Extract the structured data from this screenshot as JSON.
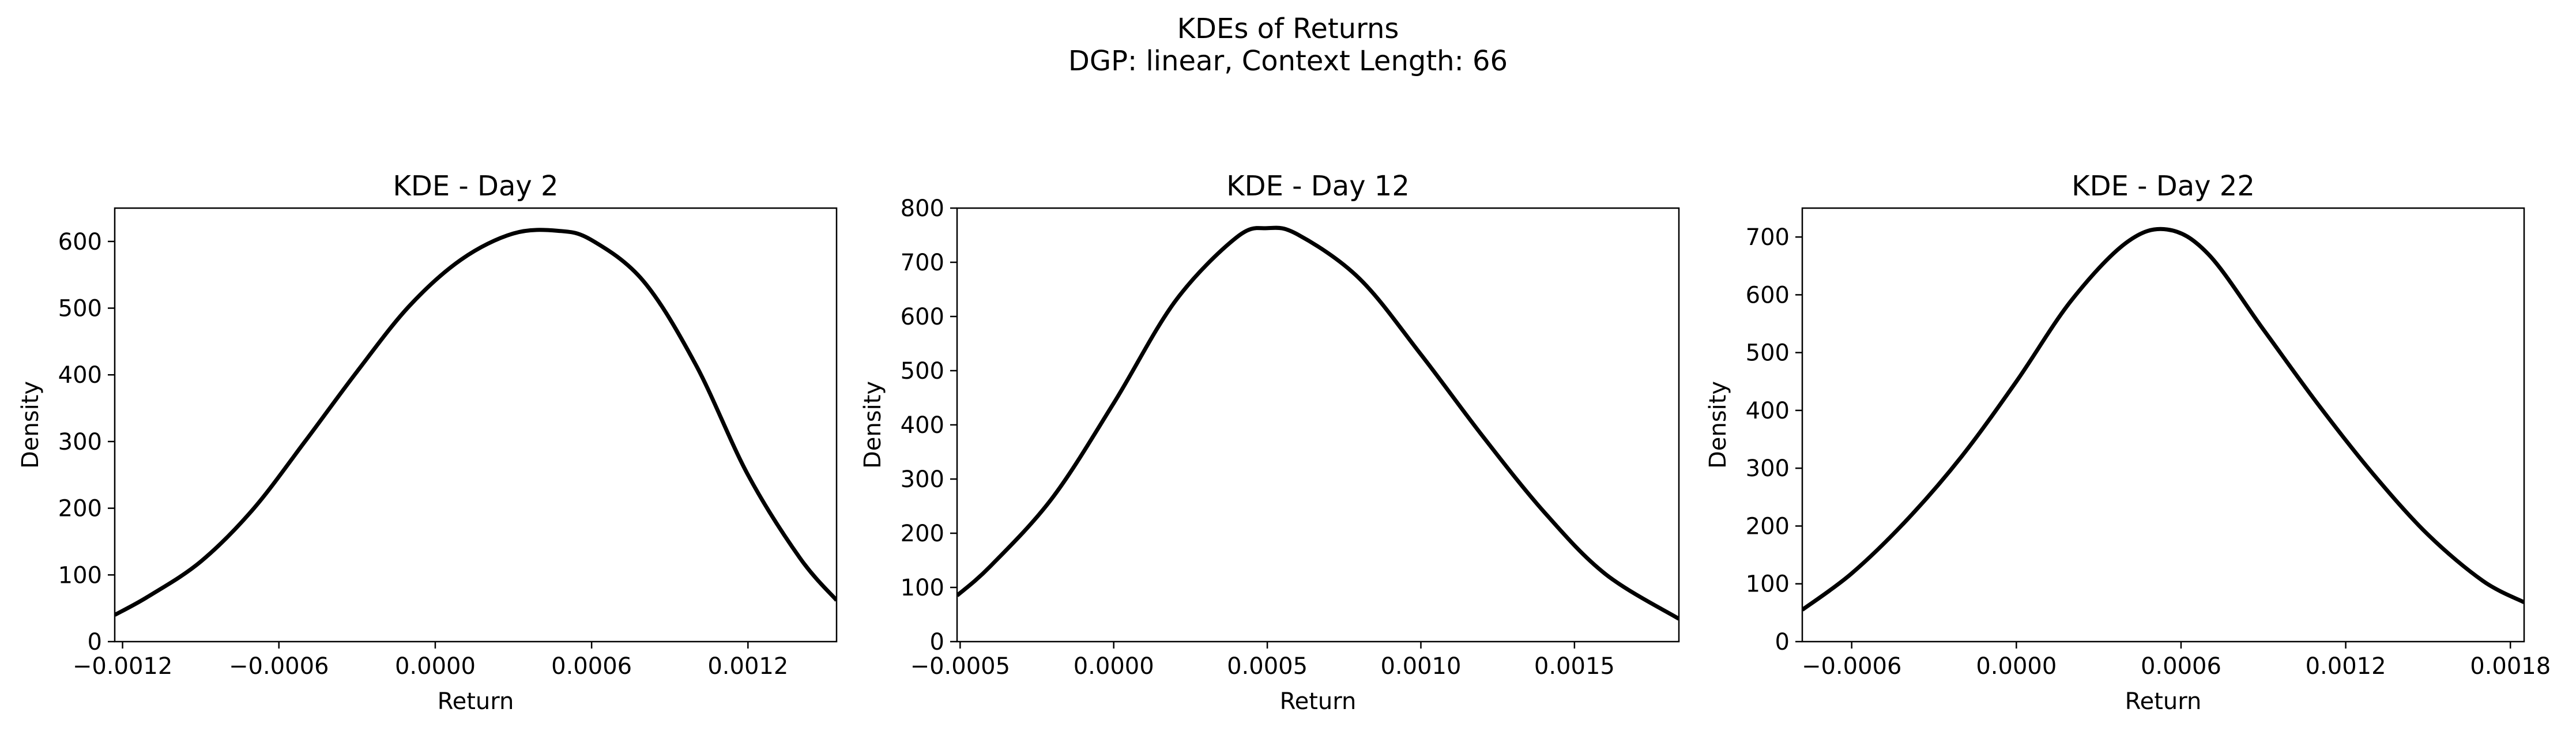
{
  "figure": {
    "title_line1": "KDEs of Returns",
    "title_line2": "DGP: linear, Context Length: 66"
  },
  "style": {
    "line_color": "#000000"
  },
  "chart_data": [
    {
      "type": "line",
      "title": "KDE - Day 2",
      "xlabel": "Return",
      "ylabel": "Density",
      "xlim": [
        -0.00123,
        0.00154
      ],
      "ylim": [
        0,
        650
      ],
      "xticks": [
        -0.0012,
        -0.0006,
        0.0,
        0.0006,
        0.0012
      ],
      "xtick_labels": [
        "−0.0012",
        "−0.0006",
        "0.0000",
        "0.0006",
        "0.0012"
      ],
      "yticks": [
        0,
        100,
        200,
        300,
        400,
        500,
        600
      ],
      "ytick_labels": [
        "0",
        "100",
        "200",
        "300",
        "400",
        "500",
        "600"
      ],
      "series": [
        {
          "x": [
            -0.00123,
            -0.0011,
            -0.0009,
            -0.0007,
            -0.0005,
            -0.0003,
            -0.0001,
            0.0001,
            0.0003,
            0.00047,
            0.0006,
            0.0008,
            0.001,
            0.0012,
            0.0014,
            0.00154
          ],
          "y": [
            40,
            68,
            120,
            198,
            300,
            405,
            503,
            573,
            612,
            616,
            602,
            540,
            415,
            250,
            125,
            62
          ]
        }
      ]
    },
    {
      "type": "line",
      "title": "KDE - Day 12",
      "xlabel": "Return",
      "ylabel": "Density",
      "xlim": [
        -0.00051,
        0.00184
      ],
      "ylim": [
        0,
        800
      ],
      "xticks": [
        -0.0005,
        0.0,
        0.0005,
        0.001,
        0.0015
      ],
      "xtick_labels": [
        "−0.0005",
        "0.0000",
        "0.0005",
        "0.0010",
        "0.0015"
      ],
      "yticks": [
        0,
        100,
        200,
        300,
        400,
        500,
        600,
        700,
        800
      ],
      "ytick_labels": [
        "0",
        "100",
        "200",
        "300",
        "400",
        "500",
        "600",
        "700",
        "800"
      ],
      "series": [
        {
          "x": [
            -0.00051,
            -0.0004,
            -0.0002,
            0.0,
            0.0002,
            0.0004,
            0.0005,
            0.0006,
            0.0008,
            0.001,
            0.0012,
            0.0014,
            0.0016,
            0.00184
          ],
          "y": [
            85,
            140,
            265,
            440,
            628,
            746,
            763,
            751,
            670,
            530,
            380,
            240,
            125,
            42
          ]
        }
      ]
    },
    {
      "type": "line",
      "title": "KDE - Day 22",
      "xlabel": "Return",
      "ylabel": "Density",
      "xlim": [
        -0.00078,
        0.00185
      ],
      "ylim": [
        0,
        750
      ],
      "xticks": [
        -0.0006,
        0.0,
        0.0006,
        0.0012,
        0.0018
      ],
      "xtick_labels": [
        "−0.0006",
        "0.0000",
        "0.0006",
        "0.0012",
        "0.0018"
      ],
      "yticks": [
        0,
        100,
        200,
        300,
        400,
        500,
        600,
        700
      ],
      "ytick_labels": [
        "0",
        "100",
        "200",
        "300",
        "400",
        "500",
        "600",
        "700"
      ],
      "series": [
        {
          "x": [
            -0.00078,
            -0.0006,
            -0.0004,
            -0.0002,
            0.0,
            0.0002,
            0.0004,
            0.00055,
            0.0007,
            0.0009,
            0.0011,
            0.0013,
            0.0015,
            0.0017,
            0.00185
          ],
          "y": [
            55,
            118,
            210,
            320,
            450,
            590,
            690,
            713,
            670,
            540,
            410,
            290,
            185,
            105,
            68
          ]
        }
      ]
    }
  ]
}
